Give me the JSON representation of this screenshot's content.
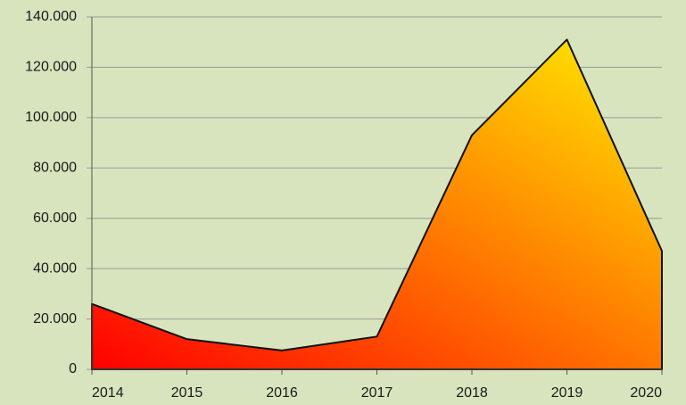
{
  "chart_data": {
    "type": "area",
    "x": [
      2014,
      2015,
      2016,
      2017,
      2018,
      2019,
      2020
    ],
    "values": [
      26000,
      12000,
      7500,
      13000,
      93000,
      131000,
      47000
    ],
    "gradient": [
      "#ff0000",
      "#ffee00"
    ],
    "xlim": [
      2014,
      2020
    ],
    "xticks": [
      2014,
      2015,
      2016,
      2017,
      2018,
      2019,
      2020
    ],
    "ylim": [
      0,
      140000
    ],
    "yticks": [
      0,
      {
        "value": 20000,
        "label": "20.000"
      },
      {
        "value": 40000,
        "label": "40.000"
      },
      {
        "value": 60000,
        "label": "60.000"
      },
      {
        "value": 80000,
        "label": "80.000"
      },
      {
        "value": 100000,
        "label": "100.000"
      },
      {
        "value": 120000,
        "label": "120.000"
      },
      {
        "value": 140000,
        "label": "140.000"
      }
    ],
    "grid": true
  }
}
